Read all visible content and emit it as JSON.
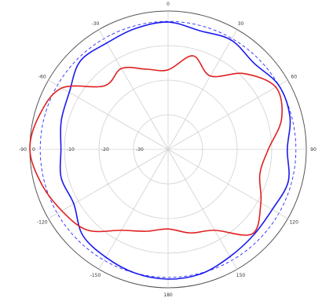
{
  "chart_data": {
    "type": "polar-line",
    "title": "",
    "angle_tick_labels": [
      {
        "deg": 0,
        "label": "0"
      },
      {
        "deg": 30,
        "label": "30"
      },
      {
        "deg": 60,
        "label": "60"
      },
      {
        "deg": 90,
        "label": "90"
      },
      {
        "deg": 120,
        "label": "120"
      },
      {
        "deg": 150,
        "label": "150"
      },
      {
        "deg": 180,
        "label": "180"
      },
      {
        "deg": 210,
        "label": "-150"
      },
      {
        "deg": 240,
        "label": "-120"
      },
      {
        "deg": 270,
        "label": "-90"
      },
      {
        "deg": 300,
        "label": "-60"
      },
      {
        "deg": 330,
        "label": "-30"
      }
    ],
    "radial_range": [
      -40,
      0
    ],
    "radial_ticks": [
      {
        "value": -30,
        "label": "-30"
      },
      {
        "value": -20,
        "label": "-20"
      },
      {
        "value": -10,
        "label": "-10"
      },
      {
        "value": 0,
        "label": "0"
      }
    ],
    "reference_ring": {
      "value": -3,
      "style": "dashed",
      "color": "#2a2aff"
    },
    "grid": true,
    "series": [
      {
        "color": "#1a1aee",
        "angles_deg": [
          0,
          15,
          30,
          45,
          60,
          75,
          90,
          105,
          120,
          135,
          150,
          165,
          180,
          195,
          210,
          225,
          240,
          255,
          270,
          285,
          300,
          315,
          330,
          345
        ],
        "values": [
          -3.2,
          -4.5,
          -3.5,
          -4.8,
          -3.0,
          -3.5,
          -5.5,
          -4.0,
          -5.2,
          -5.0,
          -4.2,
          -2.8,
          -2.5,
          -3.0,
          -4.0,
          -5.0,
          -8.5,
          -8.0,
          -9.0,
          -8.0,
          -7.0,
          -4.0,
          -4.5,
          -3.8
        ]
      },
      {
        "color": "#e02020",
        "angles_deg": [
          0,
          15,
          30,
          45,
          60,
          75,
          90,
          105,
          120,
          135,
          150,
          165,
          180,
          195,
          210,
          225,
          240,
          255,
          270,
          285,
          300,
          315,
          330,
          345
        ],
        "values": [
          -17.0,
          -12.0,
          -15.5,
          -9.0,
          -4.0,
          -6.0,
          -11.0,
          -12.5,
          -9.0,
          -5.5,
          -13.0,
          -15.0,
          -17.0,
          -15.5,
          -13.0,
          -7.0,
          -4.5,
          -2.0,
          0.0,
          -1.5,
          -4.5,
          -14.0,
          -13.0,
          -16.0
        ]
      }
    ]
  }
}
